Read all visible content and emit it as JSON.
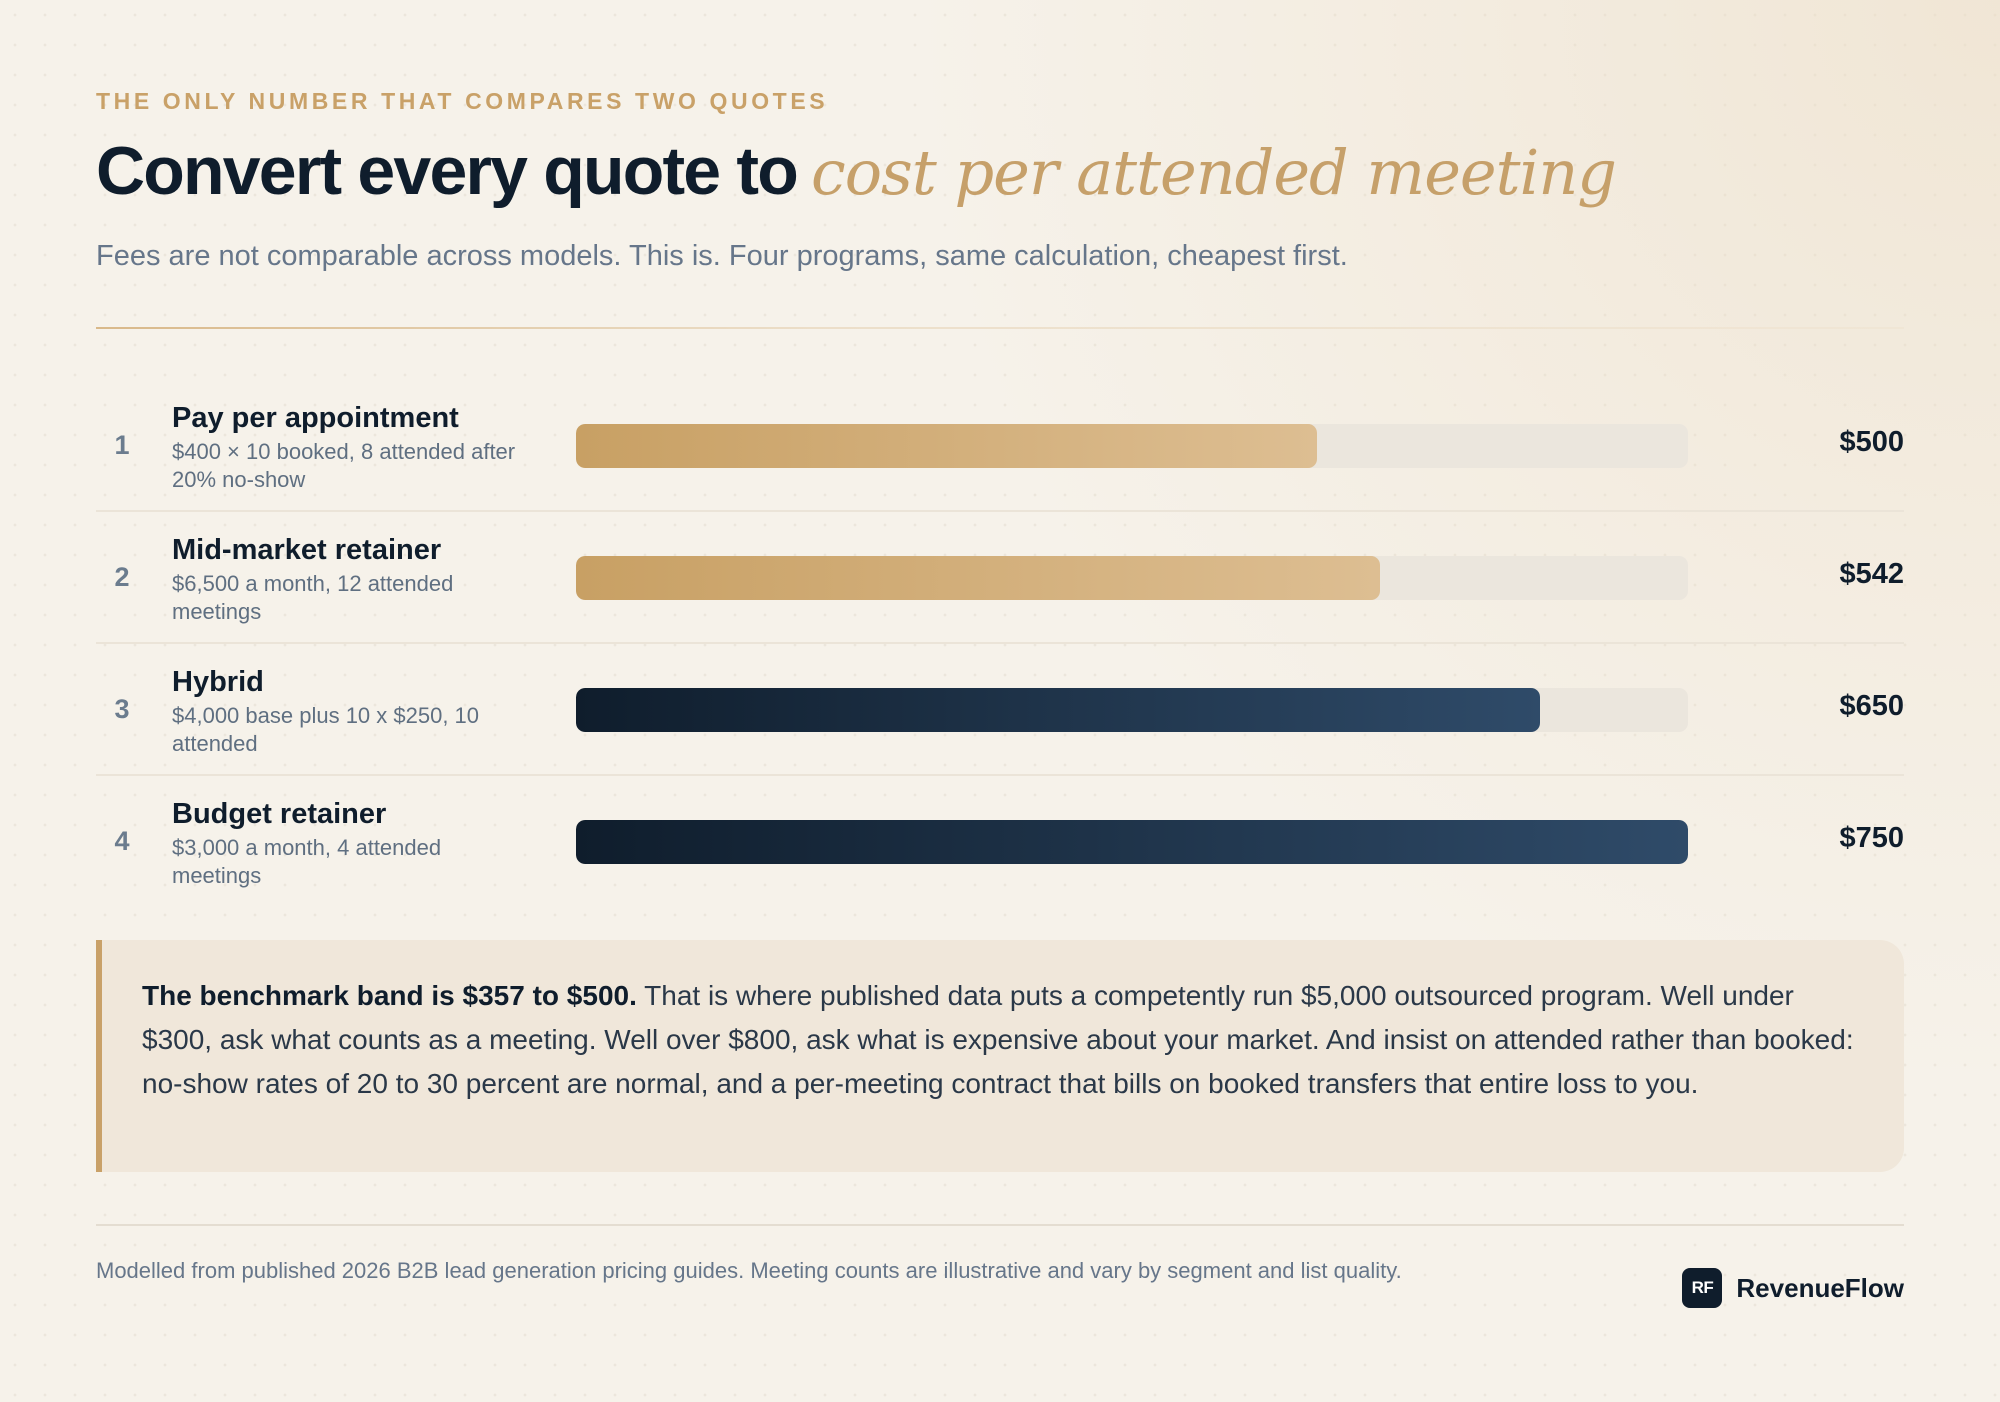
{
  "header": {
    "eyebrow": "THE ONLY NUMBER THAT COMPARES TWO QUOTES",
    "title_main": "Convert every quote to",
    "title_accent": "cost per attended meeting",
    "subtitle": "Fees are not comparable across models. This is. Four programs, same calculation, cheapest first."
  },
  "chart_data": {
    "type": "bar",
    "orientation": "horizontal",
    "categories": [
      "Pay per appointment",
      "Mid-market retainer",
      "Hybrid",
      "Budget retainer"
    ],
    "values": [
      500,
      542,
      650,
      750
    ],
    "ranks": [
      "1",
      "2",
      "3",
      "4"
    ],
    "descriptions": [
      "$400 × 10 booked, 8 attended after 20% no-show",
      "$6,500 a month, 12 attended meetings",
      "$4,000 base plus 10 x $250, 10 attended",
      "$3,000 a month, 4 attended meetings"
    ],
    "value_labels": [
      "$500",
      "$542",
      "$650",
      "$750"
    ],
    "bar_styles": [
      "gold",
      "gold",
      "navy",
      "navy"
    ],
    "xlim": [
      0,
      750
    ],
    "colors": {
      "gold_start": "#c8a064",
      "gold_end": "#ddbe92",
      "navy_start": "#0f1d2c",
      "navy_end": "#2f4b69",
      "track": "#ebe6dd"
    }
  },
  "callout": {
    "lead": "The benchmark band is $357 to $500.",
    "body": " That is where published data puts a competently run $5,000 outsourced program. Well under $300, ask what counts as a meeting. Well over $800, ask what is expensive about your market. And insist on attended rather than booked: no-show rates of 20 to 30 percent are normal, and a per-meeting contract that bills on booked transfers that entire loss to you."
  },
  "footer": {
    "note": "Modelled from published 2026 B2B lead generation pricing guides. Meeting counts are illustrative and vary by segment and list quality.",
    "brand_mark": "RF",
    "brand_name": "RevenueFlow"
  },
  "colors": {
    "accent": "#c9a168",
    "ink": "#0f1d2c",
    "muted": "#66768a",
    "background": "#f6f2ea"
  }
}
